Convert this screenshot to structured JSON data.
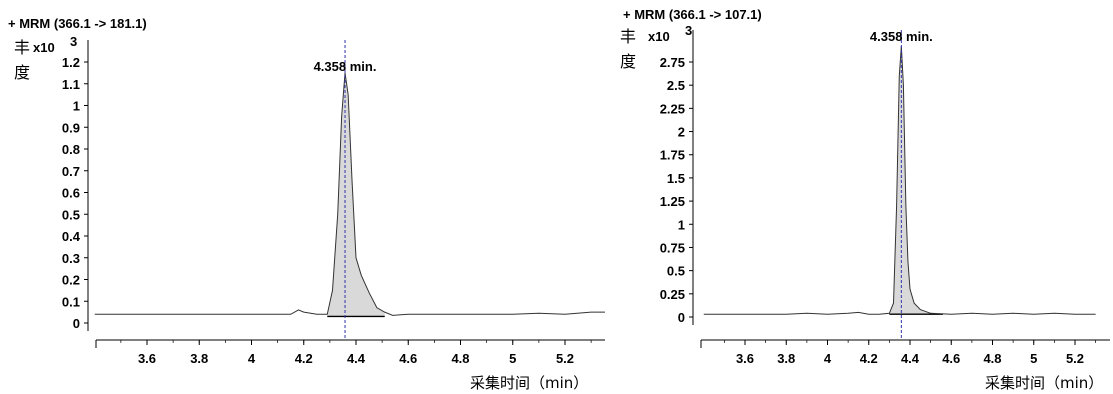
{
  "chart_data": [
    {
      "type": "line",
      "title": "+ MRM (366.1 -> 181.1)",
      "ylabel_chars": [
        "丰",
        "度"
      ],
      "y_multiplier": "x10",
      "y_multiplier_exp": "3",
      "xlabel": "采集时间（min）",
      "x_ticks": [
        "3.6",
        "3.8",
        "4",
        "4.2",
        "4.4",
        "4.6",
        "4.8",
        "5",
        "5.2"
      ],
      "y_ticks": [
        "0",
        "0.1",
        "0.2",
        "0.3",
        "0.4",
        "0.5",
        "0.6",
        "0.7",
        "0.8",
        "0.9",
        "1",
        "1.1",
        "1.2"
      ],
      "xlim": [
        3.4,
        5.36
      ],
      "ylim": [
        -0.05,
        1.28
      ],
      "peak_label": "4.358 min.",
      "peak_time": 4.358,
      "series": [
        {
          "x": [
            3.4,
            3.6,
            3.8,
            3.9,
            4.0,
            4.1,
            4.15,
            4.18,
            4.2,
            4.25,
            4.29,
            4.31,
            4.33,
            4.345,
            4.358,
            4.37,
            4.385,
            4.4,
            4.42,
            4.45,
            4.48,
            4.51,
            4.54,
            4.6,
            4.7,
            4.8,
            4.9,
            5.0,
            5.1,
            5.2,
            5.3,
            5.36
          ],
          "y": [
            0.04,
            0.04,
            0.04,
            0.04,
            0.04,
            0.04,
            0.04,
            0.06,
            0.05,
            0.04,
            0.04,
            0.15,
            0.5,
            0.95,
            1.15,
            1.05,
            0.65,
            0.3,
            0.22,
            0.14,
            0.07,
            0.05,
            0.035,
            0.04,
            0.04,
            0.04,
            0.04,
            0.04,
            0.045,
            0.04,
            0.05,
            0.05
          ]
        }
      ],
      "integration": {
        "start": 4.29,
        "end": 4.51,
        "baseline_start": 0.03,
        "baseline_end": 0.03
      }
    },
    {
      "type": "line",
      "title": "+ MRM (366.1 -> 107.1)",
      "ylabel_chars": [
        "丰",
        "度"
      ],
      "y_multiplier": "x10",
      "y_multiplier_exp": "3",
      "xlabel": "采集时间（min）",
      "x_ticks": [
        "3.6",
        "3.8",
        "4",
        "4.2",
        "4.4",
        "4.6",
        "4.8",
        "5",
        "5.2"
      ],
      "y_ticks": [
        "0",
        "0.25",
        "0.5",
        "0.75",
        "1",
        "1.25",
        "1.5",
        "1.75",
        "2",
        "2.25",
        "2.5",
        "2.75"
      ],
      "xlim": [
        3.4,
        5.3
      ],
      "ylim": [
        -0.12,
        3.0
      ],
      "peak_label": "4.358 min.",
      "peak_time": 4.358,
      "series": [
        {
          "x": [
            3.4,
            3.6,
            3.8,
            3.9,
            4.0,
            4.1,
            4.15,
            4.2,
            4.25,
            4.3,
            4.32,
            4.335,
            4.348,
            4.358,
            4.368,
            4.38,
            4.39,
            4.4,
            4.42,
            4.45,
            4.5,
            4.6,
            4.7,
            4.8,
            4.9,
            5.0,
            5.1,
            5.2,
            5.3
          ],
          "y": [
            0.03,
            0.03,
            0.03,
            0.04,
            0.03,
            0.04,
            0.05,
            0.03,
            0.03,
            0.04,
            0.15,
            1.2,
            2.6,
            2.92,
            2.5,
            1.2,
            0.6,
            0.3,
            0.15,
            0.08,
            0.04,
            0.03,
            0.04,
            0.03,
            0.04,
            0.03,
            0.04,
            0.03,
            0.03
          ]
        }
      ],
      "integration": {
        "start": 4.3,
        "end": 4.56,
        "baseline_start": 0.03,
        "baseline_end": 0.03
      }
    }
  ]
}
